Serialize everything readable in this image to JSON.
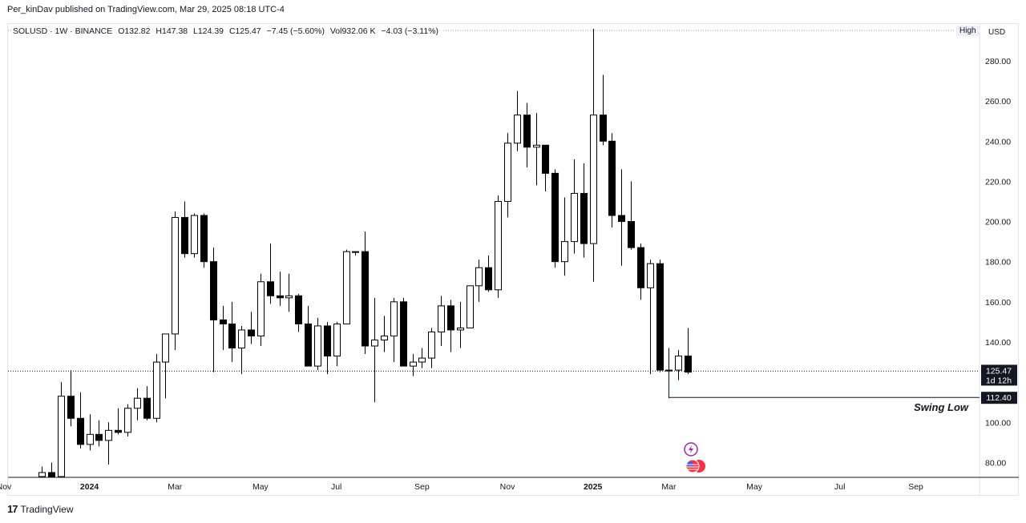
{
  "header": {
    "text": "Per_kinDav published on TradingView.com, Mar 29, 2025 08:18 UTC-4"
  },
  "legend": {
    "symbol": "SOLUSD · 1W · BINANCE",
    "open": "O132.82",
    "high": "H147.38",
    "low": "L124.39",
    "close": "C125.47",
    "change": "−7.45 (−5.60%)",
    "volume": "Vol932.06 K",
    "vol_change": "−4.03 (−3.11%)"
  },
  "currency_button": "USD",
  "high_tag": "High",
  "price_tags": {
    "current_price": "125.47",
    "countdown": "1d 12h",
    "swing_price": "112.40"
  },
  "annotation": {
    "text": "Swing Low"
  },
  "footer": {
    "logo": "17",
    "brand": "TradingView"
  },
  "colors": {
    "up": "#ffffff",
    "down": "#000000",
    "outline": "#000000",
    "grid": "#f0f3fa",
    "axis_text": "#131722"
  },
  "icons": [
    "lightning-icon",
    "us-flag-icon"
  ],
  "chart_data": {
    "type": "candlestick",
    "symbol": "SOLUSD",
    "interval": "1W",
    "exchange": "BINANCE",
    "ylim": [
      72,
      296
    ],
    "yticks": [
      80,
      100,
      120,
      140,
      160,
      180,
      200,
      220,
      240,
      260,
      280
    ],
    "yticks_labels": [
      "80.00",
      "100.00",
      "120.00",
      "140.00",
      "160.00",
      "180.00",
      "200.00",
      "220.00",
      "240.00",
      "260.00",
      "280.00"
    ],
    "xticks": [
      {
        "label": "Nov",
        "week": -3,
        "bold": false
      },
      {
        "label": "2024",
        "week": 6,
        "bold": true
      },
      {
        "label": "Mar",
        "week": 15,
        "bold": false
      },
      {
        "label": "May",
        "week": 24,
        "bold": false
      },
      {
        "label": "Jul",
        "week": 32,
        "bold": false
      },
      {
        "label": "Sep",
        "week": 41,
        "bold": false
      },
      {
        "label": "Nov",
        "week": 50,
        "bold": false
      },
      {
        "label": "2025",
        "week": 59,
        "bold": true
      },
      {
        "label": "Mar",
        "week": 67,
        "bold": false
      },
      {
        "label": "May",
        "week": 76,
        "bold": false
      },
      {
        "label": "Jul",
        "week": 85,
        "bold": false
      },
      {
        "label": "Sep",
        "week": 93,
        "bold": false
      }
    ],
    "candles": [
      {
        "o": 73,
        "h": 78,
        "l": 70,
        "c": 75
      },
      {
        "o": 75,
        "h": 80,
        "l": 68,
        "c": 73
      },
      {
        "o": 73,
        "h": 120,
        "l": 70,
        "c": 113
      },
      {
        "o": 113,
        "h": 126,
        "l": 98,
        "c": 102
      },
      {
        "o": 102,
        "h": 115,
        "l": 87,
        "c": 89
      },
      {
        "o": 89,
        "h": 104,
        "l": 86,
        "c": 94
      },
      {
        "o": 94,
        "h": 101,
        "l": 88,
        "c": 91
      },
      {
        "o": 91,
        "h": 100,
        "l": 79,
        "c": 96
      },
      {
        "o": 96,
        "h": 107,
        "l": 94,
        "c": 95
      },
      {
        "o": 95,
        "h": 109,
        "l": 93,
        "c": 107
      },
      {
        "o": 107,
        "h": 117,
        "l": 101,
        "c": 112
      },
      {
        "o": 112,
        "h": 118,
        "l": 101,
        "c": 102
      },
      {
        "o": 102,
        "h": 134,
        "l": 100,
        "c": 130
      },
      {
        "o": 130,
        "h": 144,
        "l": 112,
        "c": 144
      },
      {
        "o": 144,
        "h": 205,
        "l": 136,
        "c": 202
      },
      {
        "o": 202,
        "h": 210,
        "l": 182,
        "c": 184
      },
      {
        "o": 184,
        "h": 204,
        "l": 182,
        "c": 203
      },
      {
        "o": 203,
        "h": 204,
        "l": 177,
        "c": 180
      },
      {
        "o": 180,
        "h": 187,
        "l": 125,
        "c": 151
      },
      {
        "o": 151,
        "h": 158,
        "l": 136,
        "c": 149
      },
      {
        "o": 149,
        "h": 160,
        "l": 130,
        "c": 137
      },
      {
        "o": 137,
        "h": 148,
        "l": 124,
        "c": 146
      },
      {
        "o": 146,
        "h": 155,
        "l": 139,
        "c": 143
      },
      {
        "o": 143,
        "h": 174,
        "l": 138,
        "c": 170
      },
      {
        "o": 170,
        "h": 189,
        "l": 159,
        "c": 163
      },
      {
        "o": 163,
        "h": 175,
        "l": 158,
        "c": 162
      },
      {
        "o": 162,
        "h": 174,
        "l": 155,
        "c": 163
      },
      {
        "o": 163,
        "h": 164,
        "l": 145,
        "c": 149
      },
      {
        "o": 149,
        "h": 158,
        "l": 128,
        "c": 128
      },
      {
        "o": 128,
        "h": 152,
        "l": 126,
        "c": 148
      },
      {
        "o": 148,
        "h": 150,
        "l": 124,
        "c": 133
      },
      {
        "o": 133,
        "h": 150,
        "l": 128,
        "c": 149
      },
      {
        "o": 149,
        "h": 186,
        "l": 149,
        "c": 185
      },
      {
        "o": 185,
        "h": 185,
        "l": 183,
        "c": 185
      },
      {
        "o": 185,
        "h": 195,
        "l": 134,
        "c": 138
      },
      {
        "o": 138,
        "h": 162,
        "l": 110,
        "c": 141
      },
      {
        "o": 141,
        "h": 153,
        "l": 135,
        "c": 143
      },
      {
        "o": 143,
        "h": 162,
        "l": 130,
        "c": 160
      },
      {
        "o": 160,
        "h": 162,
        "l": 128,
        "c": 128
      },
      {
        "o": 128,
        "h": 134,
        "l": 123,
        "c": 130
      },
      {
        "o": 130,
        "h": 137,
        "l": 127,
        "c": 132
      },
      {
        "o": 132,
        "h": 147,
        "l": 127,
        "c": 145
      },
      {
        "o": 145,
        "h": 163,
        "l": 138,
        "c": 158
      },
      {
        "o": 158,
        "h": 161,
        "l": 135,
        "c": 146
      },
      {
        "o": 146,
        "h": 160,
        "l": 137,
        "c": 147
      },
      {
        "o": 147,
        "h": 168,
        "l": 147,
        "c": 168
      },
      {
        "o": 168,
        "h": 181,
        "l": 160,
        "c": 177
      },
      {
        "o": 177,
        "h": 183,
        "l": 165,
        "c": 166
      },
      {
        "o": 166,
        "h": 213,
        "l": 162,
        "c": 210
      },
      {
        "o": 210,
        "h": 244,
        "l": 202,
        "c": 239
      },
      {
        "o": 239,
        "h": 265,
        "l": 235,
        "c": 253
      },
      {
        "o": 253,
        "h": 259,
        "l": 227,
        "c": 237
      },
      {
        "o": 237,
        "h": 254,
        "l": 218,
        "c": 238
      },
      {
        "o": 238,
        "h": 238,
        "l": 215,
        "c": 224
      },
      {
        "o": 224,
        "h": 226,
        "l": 177,
        "c": 180
      },
      {
        "o": 180,
        "h": 212,
        "l": 173,
        "c": 190
      },
      {
        "o": 190,
        "h": 231,
        "l": 184,
        "c": 214
      },
      {
        "o": 214,
        "h": 229,
        "l": 182,
        "c": 189
      },
      {
        "o": 189,
        "h": 296,
        "l": 170,
        "c": 253
      },
      {
        "o": 253,
        "h": 273,
        "l": 238,
        "c": 240
      },
      {
        "o": 240,
        "h": 244,
        "l": 197,
        "c": 203
      },
      {
        "o": 203,
        "h": 226,
        "l": 178,
        "c": 200
      },
      {
        "o": 200,
        "h": 220,
        "l": 186,
        "c": 187
      },
      {
        "o": 187,
        "h": 189,
        "l": 161,
        "c": 167
      },
      {
        "o": 167,
        "h": 181,
        "l": 124,
        "c": 179
      },
      {
        "o": 179,
        "h": 181,
        "l": 125,
        "c": 126
      },
      {
        "o": 126,
        "h": 137,
        "l": 112,
        "c": 126
      },
      {
        "o": 126,
        "h": 136,
        "l": 121,
        "c": 133
      },
      {
        "o": 133,
        "h": 147,
        "l": 124,
        "c": 125
      }
    ],
    "first_candle_week": 1,
    "current_price": 125.47,
    "swing_low": {
      "price": 112.4,
      "label": "Swing Low"
    },
    "high_line_price": 295.2
  }
}
